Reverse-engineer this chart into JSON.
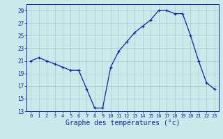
{
  "hours": [
    0,
    1,
    2,
    3,
    4,
    5,
    6,
    7,
    8,
    9,
    10,
    11,
    12,
    13,
    14,
    15,
    16,
    17,
    18,
    19,
    20,
    21,
    22,
    23
  ],
  "temps": [
    21,
    21.5,
    21,
    20.5,
    20,
    19.5,
    19.5,
    16.5,
    13.5,
    13.5,
    20,
    22.5,
    24,
    25.5,
    26.5,
    27.5,
    29,
    29,
    28.5,
    28.5,
    25,
    21,
    17.5,
    16.5
  ],
  "line_color": "#1c1cb4",
  "marker": "+",
  "bg_color": "#c8eaea",
  "grid_major_color": "#aac8c8",
  "grid_minor_color": "#c0e0e0",
  "xlabel": "Graphe des températures (°c)",
  "ylim": [
    13,
    30
  ],
  "xlim": [
    -0.5,
    23.5
  ],
  "yticks": [
    13,
    15,
    17,
    19,
    21,
    23,
    25,
    27,
    29
  ],
  "xtick_labels": [
    "0",
    "1",
    "2",
    "3",
    "4",
    "5",
    "6",
    "7",
    "8",
    "9",
    "10",
    "11",
    "12",
    "13",
    "14",
    "15",
    "16",
    "17",
    "18",
    "19",
    "20",
    "21",
    "22",
    "23"
  ],
  "axis_color": "#1c1cb4",
  "tick_color": "#1c1cb4",
  "xlabel_fontsize": 7,
  "ytick_fontsize": 5.5,
  "xtick_fontsize": 5.0
}
